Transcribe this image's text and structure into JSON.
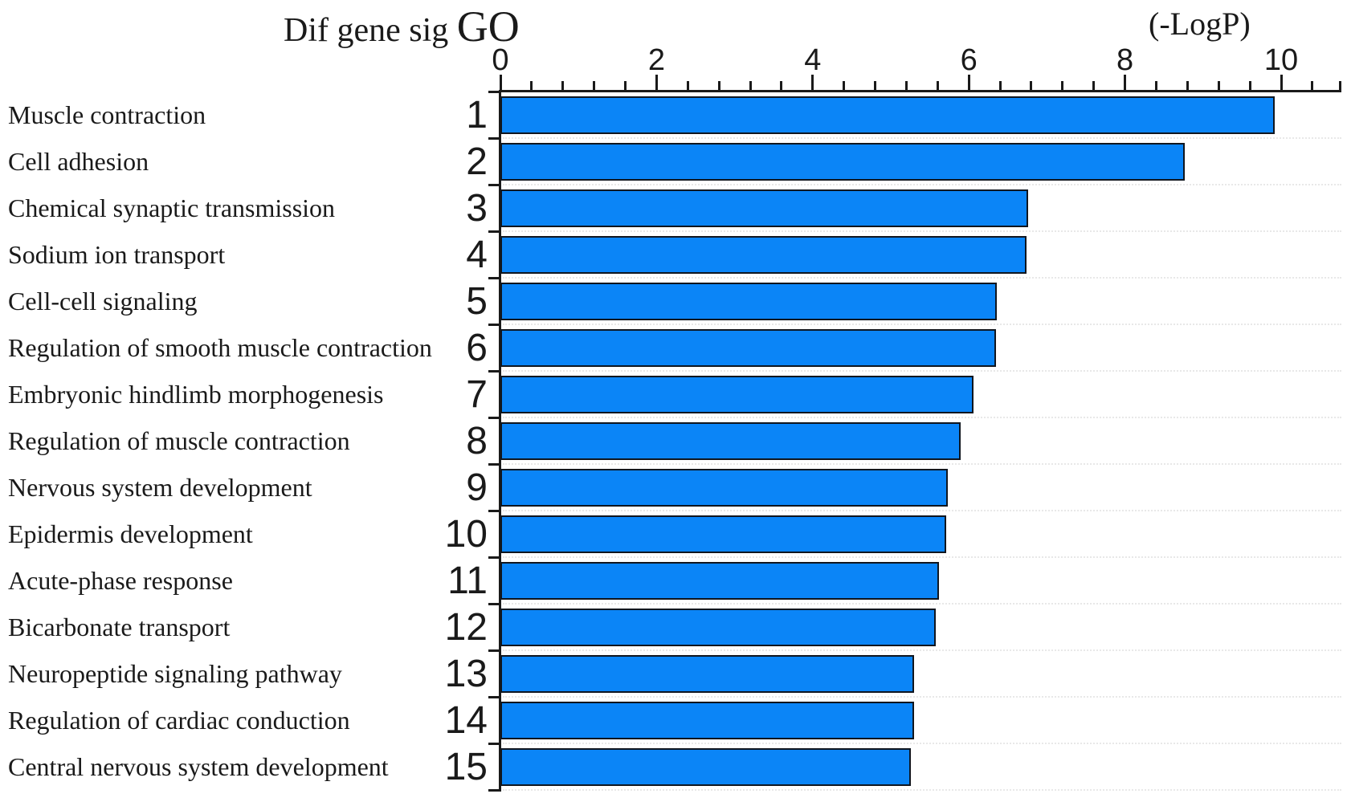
{
  "title": {
    "prefix": "Dif gene sig ",
    "go": "GO"
  },
  "axis": {
    "unit_label": "(-LogP)"
  },
  "colors": {
    "bar_fill": "#0b85f7",
    "bar_border": "#10161f",
    "axis": "#1a1a1a",
    "text": "#1a1a1a",
    "gridline": "#e8e8e8",
    "background": "#ffffff"
  },
  "chart_data": {
    "type": "bar",
    "orientation": "horizontal",
    "title": "Dif gene sig GO",
    "xlabel": "(-LogP)",
    "xlim": [
      0,
      10.8
    ],
    "x_major_ticks": [
      0,
      2,
      4,
      6,
      8,
      10
    ],
    "x_minor_tick_step": 0.4,
    "grid": "dotted-row-separators",
    "legend": "none",
    "rank_labels": [
      "1",
      "2",
      "3",
      "4",
      "5",
      "6",
      "7",
      "8",
      "9",
      "10",
      "11",
      "12",
      "13",
      "14",
      "15"
    ],
    "categories": [
      "Muscle contraction",
      "Cell adhesion",
      "Chemical synaptic transmission",
      "Sodium ion transport",
      "Cell-cell signaling",
      "Regulation of smooth muscle contraction",
      "Embryonic hindlimb morphogenesis",
      "Regulation of muscle contraction",
      "Nervous system development",
      "Epidermis development",
      "Acute-phase response",
      "Bicarbonate transport",
      "Neuropeptide signaling pathway",
      "Regulation of cardiac conduction",
      "Central nervous system development"
    ],
    "values": [
      9.92,
      8.77,
      6.76,
      6.74,
      6.36,
      6.35,
      6.06,
      5.9,
      5.73,
      5.71,
      5.62,
      5.58,
      5.3,
      5.3,
      5.26
    ]
  }
}
